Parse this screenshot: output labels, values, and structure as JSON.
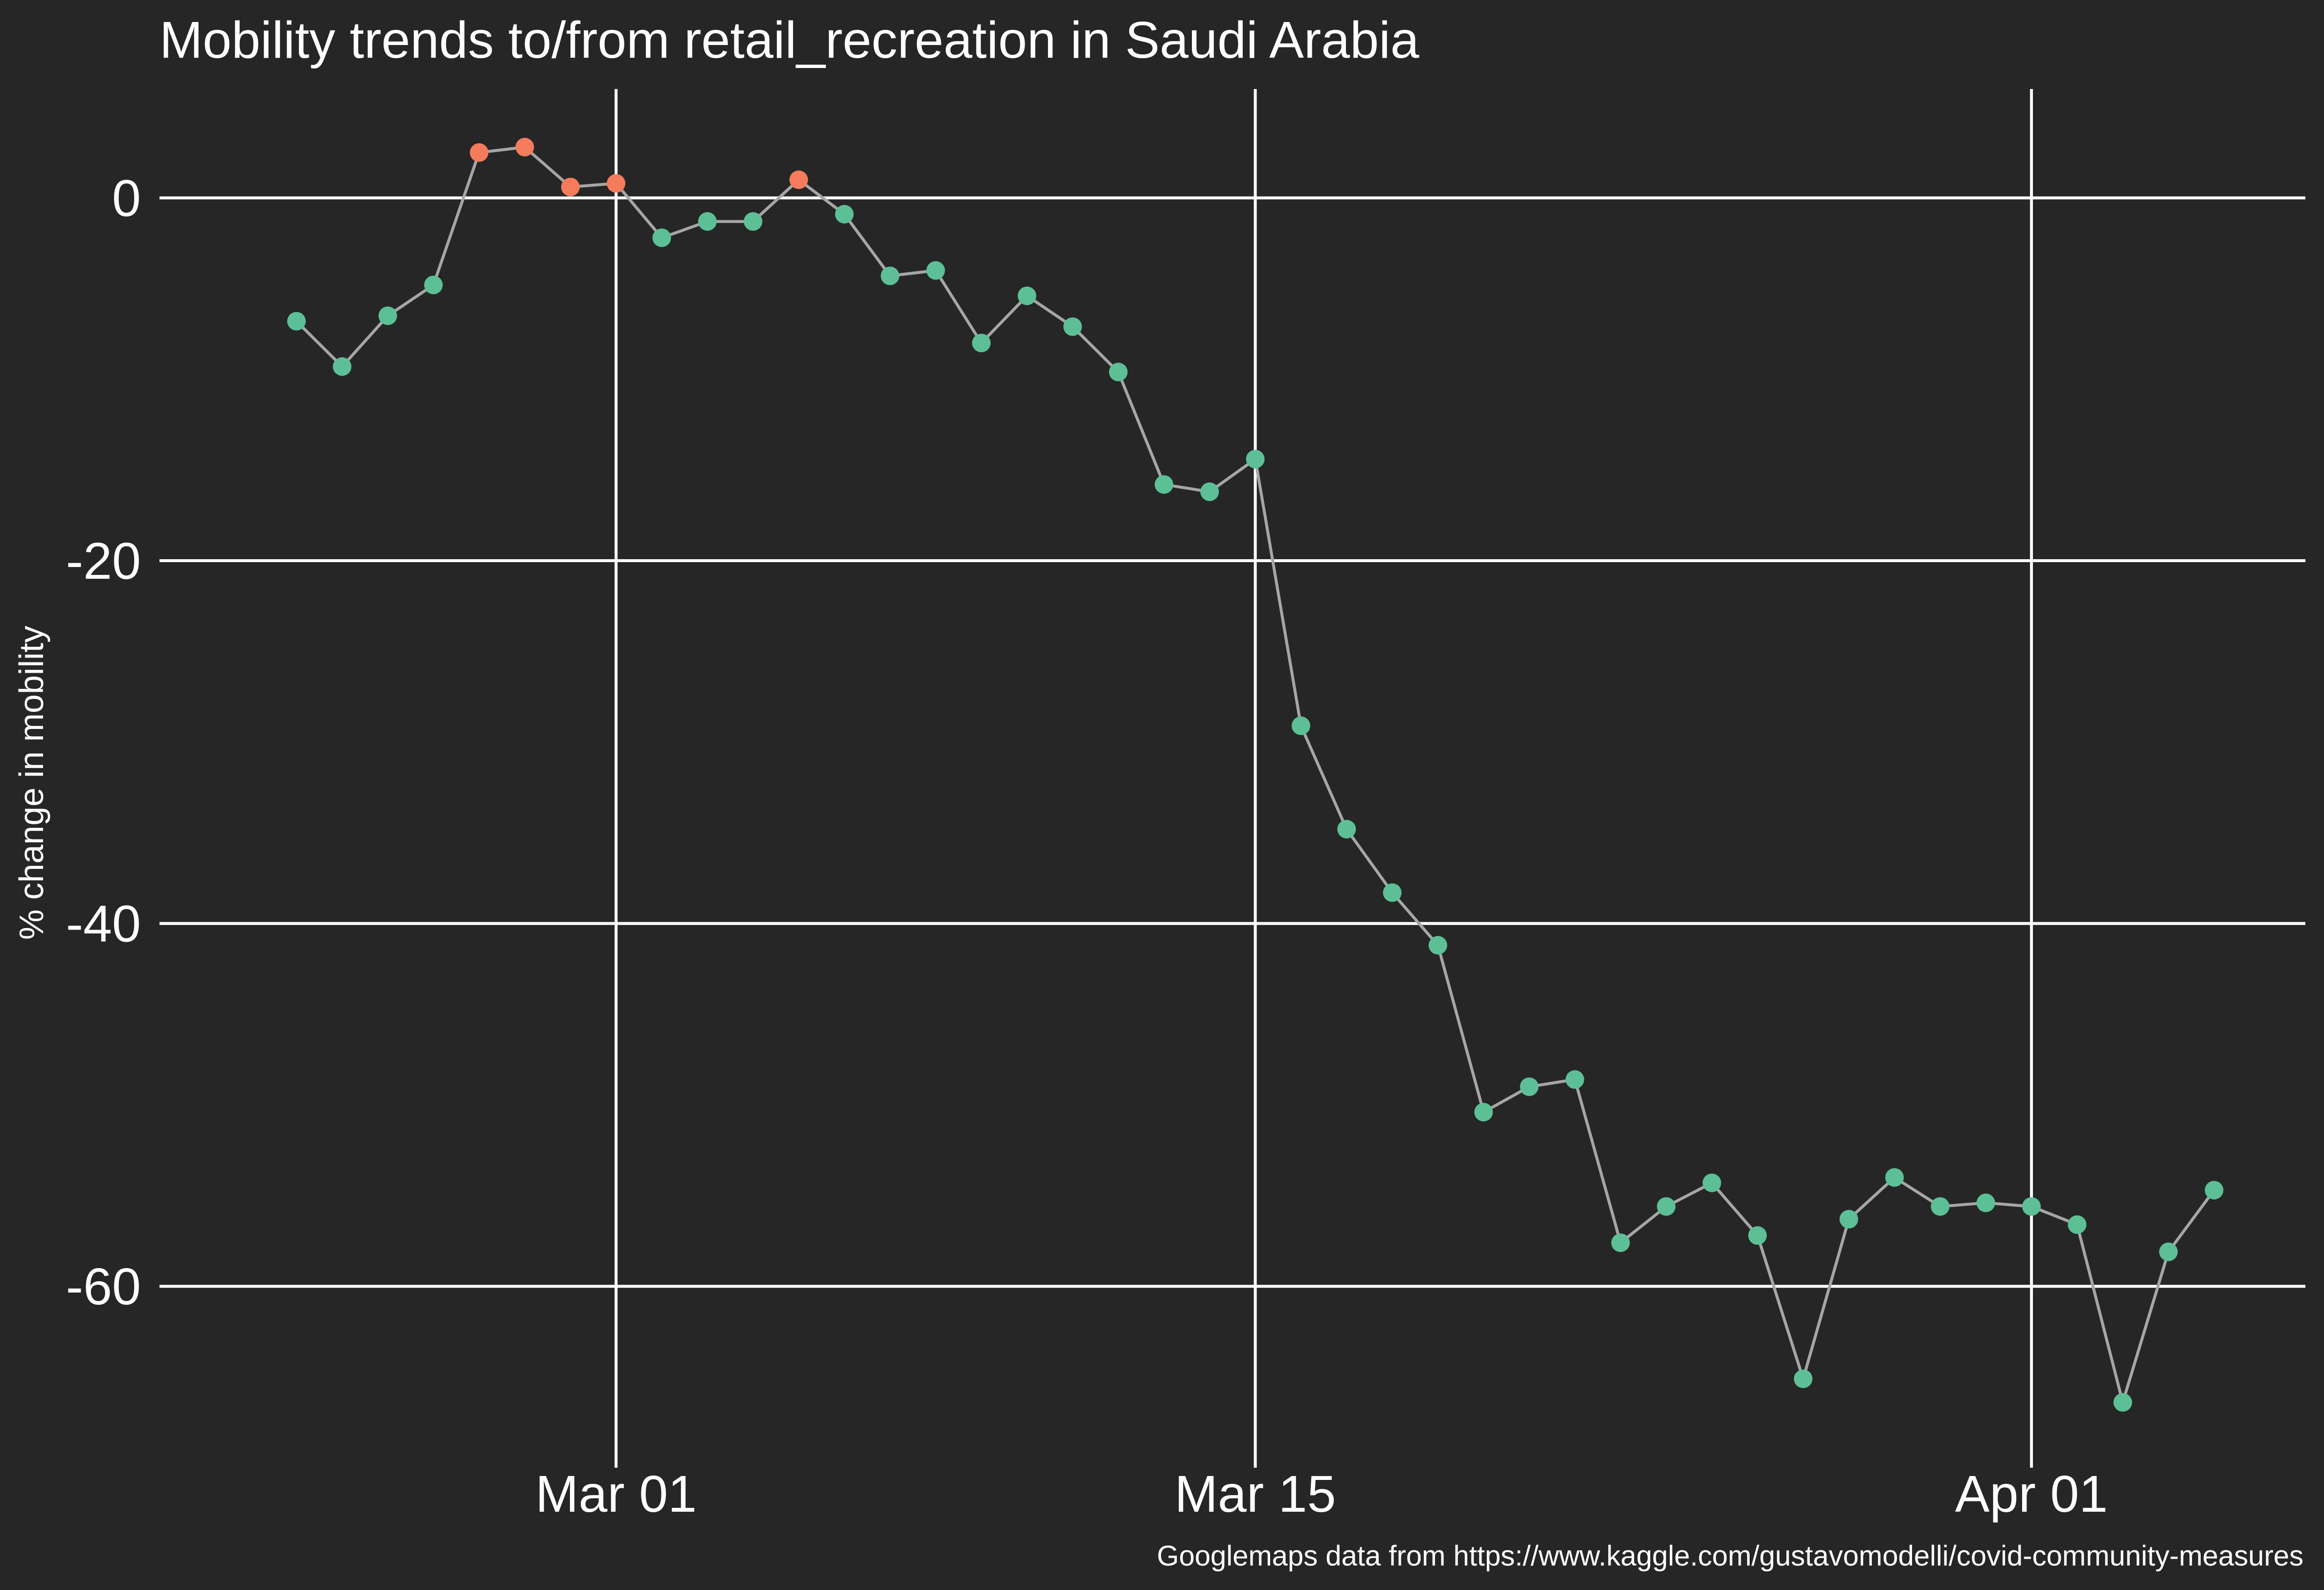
{
  "chart_data": {
    "type": "line",
    "title": "Mobility trends to/from retail_recreation in Saudi Arabia",
    "xlabel": "",
    "ylabel": "% change in mobility",
    "caption": "Googlemaps data from https://www.kaggle.com/gustavomodelli/covid-community-measures",
    "x_tick_labels": [
      "Mar 01",
      "Mar 15",
      "Apr 01"
    ],
    "x_tick_dates": [
      "2020-03-01",
      "2020-03-15",
      "2020-04-01"
    ],
    "y_ticks": [
      0,
      -20,
      -40,
      -60
    ],
    "y_tick_labels": [
      "0",
      "-20",
      "-40",
      "-60"
    ],
    "xlim": [
      "2020-02-20",
      "2020-04-07"
    ],
    "ylim": [
      -70,
      6
    ],
    "grid": true,
    "legend": "none",
    "colors": {
      "background": "#262626",
      "line": "#a6a6a6",
      "negative_point": "#5dbf96",
      "positive_point": "#f47c5c",
      "text": "#ffffff"
    },
    "points": [
      {
        "x": "2020-02-23",
        "y": -6.8
      },
      {
        "x": "2020-02-24",
        "y": -9.3
      },
      {
        "x": "2020-02-25",
        "y": -6.5
      },
      {
        "x": "2020-02-26",
        "y": -4.8
      },
      {
        "x": "2020-02-27",
        "y": 2.5
      },
      {
        "x": "2020-02-28",
        "y": 2.8
      },
      {
        "x": "2020-02-29",
        "y": 0.6
      },
      {
        "x": "2020-03-01",
        "y": 0.8
      },
      {
        "x": "2020-03-02",
        "y": -2.2
      },
      {
        "x": "2020-03-03",
        "y": -1.3
      },
      {
        "x": "2020-03-04",
        "y": -1.3
      },
      {
        "x": "2020-03-05",
        "y": 1.0
      },
      {
        "x": "2020-03-06",
        "y": -0.9
      },
      {
        "x": "2020-03-07",
        "y": -4.3
      },
      {
        "x": "2020-03-08",
        "y": -4.0
      },
      {
        "x": "2020-03-09",
        "y": -8.0
      },
      {
        "x": "2020-03-10",
        "y": -5.4
      },
      {
        "x": "2020-03-11",
        "y": -7.1
      },
      {
        "x": "2020-03-12",
        "y": -9.6
      },
      {
        "x": "2020-03-13",
        "y": -15.8
      },
      {
        "x": "2020-03-14",
        "y": -16.2
      },
      {
        "x": "2020-03-15",
        "y": -14.4
      },
      {
        "x": "2020-03-16",
        "y": -29.1
      },
      {
        "x": "2020-03-17",
        "y": -34.8
      },
      {
        "x": "2020-03-18",
        "y": -38.3
      },
      {
        "x": "2020-03-19",
        "y": -41.2
      },
      {
        "x": "2020-03-20",
        "y": -50.4
      },
      {
        "x": "2020-03-21",
        "y": -49.0
      },
      {
        "x": "2020-03-22",
        "y": -48.6
      },
      {
        "x": "2020-03-23",
        "y": -57.6
      },
      {
        "x": "2020-03-24",
        "y": -55.6
      },
      {
        "x": "2020-03-25",
        "y": -54.3
      },
      {
        "x": "2020-03-26",
        "y": -57.2
      },
      {
        "x": "2020-03-27",
        "y": -65.1
      },
      {
        "x": "2020-03-28",
        "y": -56.3
      },
      {
        "x": "2020-03-29",
        "y": -54.0
      },
      {
        "x": "2020-03-30",
        "y": -55.6
      },
      {
        "x": "2020-03-31",
        "y": -55.4
      },
      {
        "x": "2020-04-01",
        "y": -55.6
      },
      {
        "x": "2020-04-02",
        "y": -56.6
      },
      {
        "x": "2020-04-03",
        "y": -66.4
      },
      {
        "x": "2020-04-04",
        "y": -58.1
      },
      {
        "x": "2020-04-05",
        "y": -54.7
      }
    ]
  }
}
